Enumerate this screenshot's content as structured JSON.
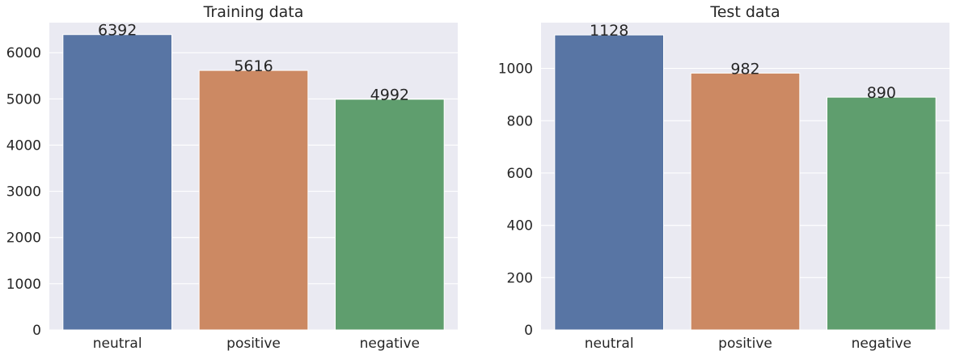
{
  "chart_data": [
    {
      "type": "bar",
      "title": "Training data",
      "categories": [
        "neutral",
        "positive",
        "negative"
      ],
      "values": [
        6392,
        5616,
        4992
      ],
      "data_labels": [
        "6392",
        "5616",
        "4992"
      ],
      "xlabel": "",
      "ylabel": "",
      "ylim": [
        0,
        6650
      ],
      "yticks": [
        0,
        1000,
        2000,
        3000,
        4000,
        5000,
        6000
      ],
      "ytick_labels": [
        "0",
        "1000",
        "2000",
        "3000",
        "4000",
        "5000",
        "6000"
      ],
      "colors": [
        "#5875a4",
        "#cc8963",
        "#5f9e6e"
      ],
      "grid": true,
      "legend": "none"
    },
    {
      "type": "bar",
      "title": "Test data",
      "categories": [
        "neutral",
        "positive",
        "negative"
      ],
      "values": [
        1128,
        982,
        890
      ],
      "data_labels": [
        "1128",
        "982",
        "890"
      ],
      "xlabel": "",
      "ylabel": "",
      "ylim": [
        0,
        1175
      ],
      "yticks": [
        0,
        200,
        400,
        600,
        800,
        1000
      ],
      "ytick_labels": [
        "0",
        "200",
        "400",
        "600",
        "800",
        "1000"
      ],
      "colors": [
        "#5875a4",
        "#cc8963",
        "#5f9e6e"
      ],
      "grid": true,
      "legend": "none"
    }
  ]
}
